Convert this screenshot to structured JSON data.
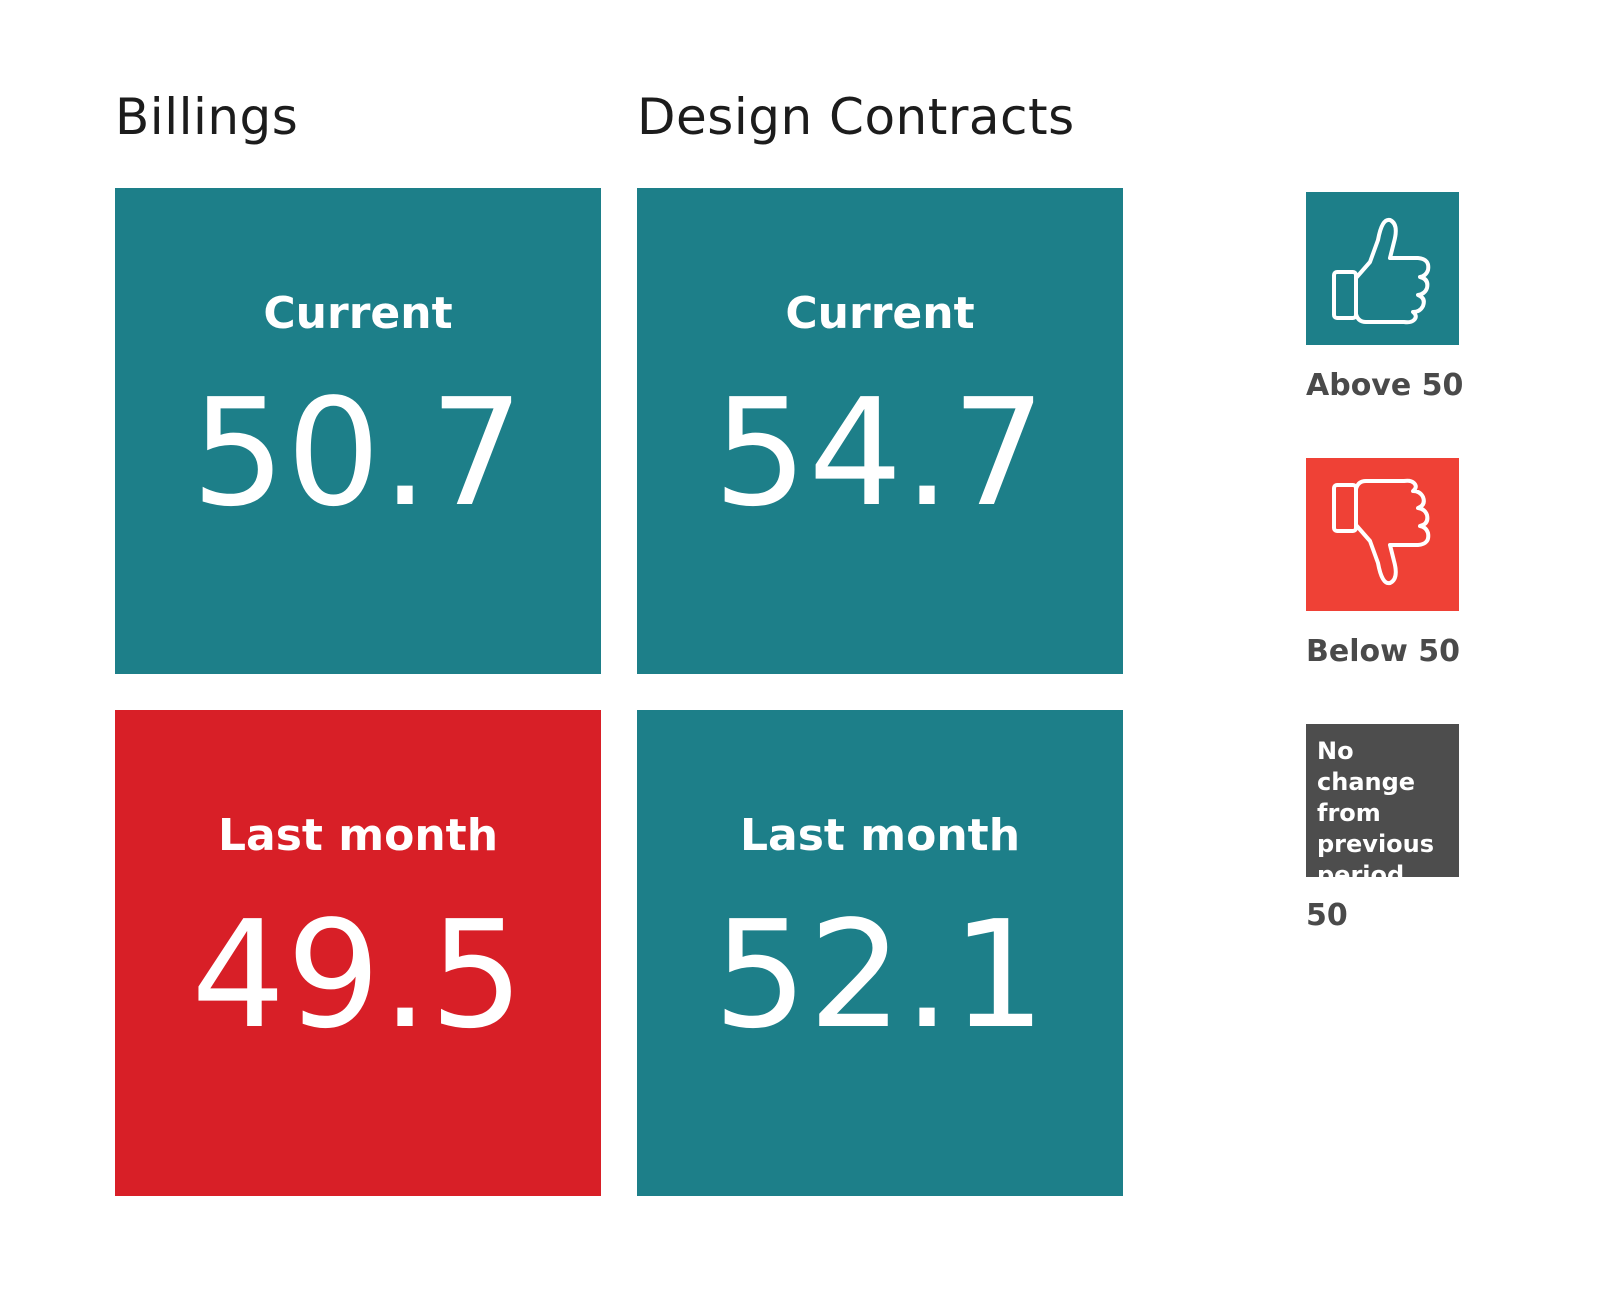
{
  "colors": {
    "above": "#1d7f89",
    "below_tile": "#d81f27",
    "below_key": "#ef4136",
    "no_change": "#4d4d4d"
  },
  "chart_data": {
    "type": "table",
    "columns": [
      "Billings",
      "Design Contracts"
    ],
    "rows": [
      {
        "label": "Current",
        "values": [
          50.7,
          54.7
        ]
      },
      {
        "label": "Last month",
        "values": [
          49.5,
          52.1
        ]
      }
    ],
    "threshold": 50
  },
  "tiles": {
    "billings_current": {
      "label": "Current",
      "value": "50.7",
      "status": "above"
    },
    "design_current": {
      "label": "Current",
      "value": "54.7",
      "status": "above"
    },
    "billings_last": {
      "label": "Last month",
      "value": "49.5",
      "status": "below"
    },
    "design_last": {
      "label": "Last month",
      "value": "52.1",
      "status": "above"
    }
  },
  "legend": {
    "above": {
      "icon": "thumbs-up-icon",
      "label": "Above 50"
    },
    "below": {
      "icon": "thumbs-down-icon",
      "label": "Below 50"
    },
    "no_change": {
      "box_text": "No change from previous period",
      "label": "50"
    }
  }
}
